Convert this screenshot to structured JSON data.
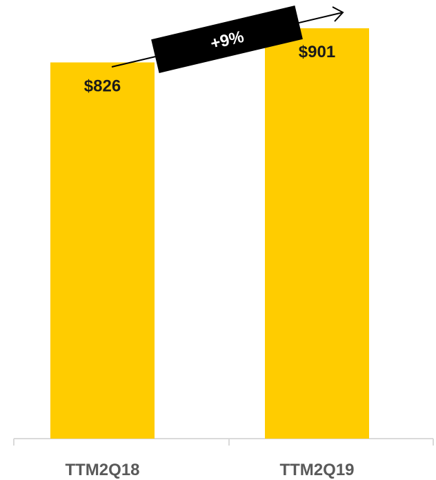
{
  "chart_data": {
    "type": "bar",
    "categories": [
      "TTM2Q18",
      "TTM2Q19"
    ],
    "values": [
      826,
      901
    ],
    "value_labels": [
      "$826",
      "$901"
    ],
    "title": "",
    "xlabel": "",
    "ylabel": "",
    "bar_color": "#FFCC00",
    "growth_annotation": {
      "text": "+9%",
      "color": "#000000"
    }
  }
}
